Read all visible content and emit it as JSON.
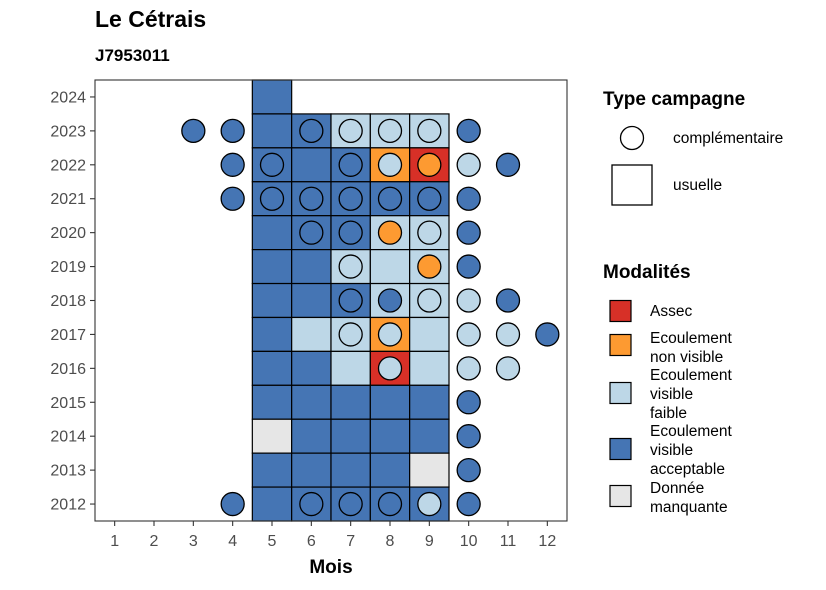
{
  "chart_data": {
    "type": "heatmap",
    "title": "Le Cétrais",
    "subtitle": "J7953011",
    "xlabel": "Mois",
    "ylabel": "",
    "x_ticks": [
      1,
      2,
      3,
      4,
      5,
      6,
      7,
      8,
      9,
      10,
      11,
      12
    ],
    "y_ticks": [
      2012,
      2013,
      2014,
      2015,
      2016,
      2017,
      2018,
      2019,
      2020,
      2021,
      2022,
      2023,
      2024
    ],
    "xlim": [
      0.5,
      12.5
    ],
    "ylim": [
      2011.5,
      2024.5
    ],
    "grid": false,
    "colors": {
      "assec": "#d73027",
      "nv": "#fd9a31",
      "vf": "#bdd7e7",
      "va": "#4575b4",
      "dm": "#e6e6e6"
    },
    "legend_type": {
      "title": "Type campagne",
      "items": [
        {
          "key": "complementaire",
          "label": "complémentaire",
          "shape": "circle"
        },
        {
          "key": "usuelle",
          "label": "usuelle",
          "shape": "square"
        }
      ]
    },
    "legend_mod": {
      "title": "Modalités",
      "items": [
        {
          "key": "assec",
          "lines": [
            "Assec"
          ]
        },
        {
          "key": "nv",
          "lines": [
            "Ecoulement",
            "non visible"
          ]
        },
        {
          "key": "vf",
          "lines": [
            "Ecoulement",
            "visible",
            "faible"
          ]
        },
        {
          "key": "va",
          "lines": [
            "Ecoulement",
            "visible",
            "acceptable"
          ]
        },
        {
          "key": "dm",
          "lines": [
            "Donnée",
            "manquante"
          ]
        }
      ]
    },
    "usuelle": [
      {
        "year": 2024,
        "month": 5,
        "mod": "va"
      },
      {
        "year": 2023,
        "month": 5,
        "mod": "va"
      },
      {
        "year": 2023,
        "month": 6,
        "mod": "va"
      },
      {
        "year": 2023,
        "month": 7,
        "mod": "vf"
      },
      {
        "year": 2023,
        "month": 8,
        "mod": "vf"
      },
      {
        "year": 2023,
        "month": 9,
        "mod": "vf"
      },
      {
        "year": 2022,
        "month": 5,
        "mod": "va"
      },
      {
        "year": 2022,
        "month": 6,
        "mod": "va"
      },
      {
        "year": 2022,
        "month": 7,
        "mod": "va"
      },
      {
        "year": 2022,
        "month": 8,
        "mod": "nv"
      },
      {
        "year": 2022,
        "month": 9,
        "mod": "assec"
      },
      {
        "year": 2021,
        "month": 5,
        "mod": "va"
      },
      {
        "year": 2021,
        "month": 6,
        "mod": "va"
      },
      {
        "year": 2021,
        "month": 7,
        "mod": "va"
      },
      {
        "year": 2021,
        "month": 8,
        "mod": "va"
      },
      {
        "year": 2021,
        "month": 9,
        "mod": "va"
      },
      {
        "year": 2020,
        "month": 5,
        "mod": "va"
      },
      {
        "year": 2020,
        "month": 6,
        "mod": "va"
      },
      {
        "year": 2020,
        "month": 7,
        "mod": "va"
      },
      {
        "year": 2020,
        "month": 8,
        "mod": "vf"
      },
      {
        "year": 2020,
        "month": 9,
        "mod": "vf"
      },
      {
        "year": 2019,
        "month": 5,
        "mod": "va"
      },
      {
        "year": 2019,
        "month": 6,
        "mod": "va"
      },
      {
        "year": 2019,
        "month": 7,
        "mod": "vf"
      },
      {
        "year": 2019,
        "month": 8,
        "mod": "vf"
      },
      {
        "year": 2019,
        "month": 9,
        "mod": "vf"
      },
      {
        "year": 2018,
        "month": 5,
        "mod": "va"
      },
      {
        "year": 2018,
        "month": 6,
        "mod": "va"
      },
      {
        "year": 2018,
        "month": 7,
        "mod": "va"
      },
      {
        "year": 2018,
        "month": 8,
        "mod": "vf"
      },
      {
        "year": 2018,
        "month": 9,
        "mod": "vf"
      },
      {
        "year": 2017,
        "month": 5,
        "mod": "va"
      },
      {
        "year": 2017,
        "month": 6,
        "mod": "vf"
      },
      {
        "year": 2017,
        "month": 7,
        "mod": "vf"
      },
      {
        "year": 2017,
        "month": 8,
        "mod": "nv"
      },
      {
        "year": 2017,
        "month": 9,
        "mod": "vf"
      },
      {
        "year": 2016,
        "month": 5,
        "mod": "va"
      },
      {
        "year": 2016,
        "month": 6,
        "mod": "va"
      },
      {
        "year": 2016,
        "month": 7,
        "mod": "vf"
      },
      {
        "year": 2016,
        "month": 8,
        "mod": "assec"
      },
      {
        "year": 2016,
        "month": 9,
        "mod": "vf"
      },
      {
        "year": 2015,
        "month": 5,
        "mod": "va"
      },
      {
        "year": 2015,
        "month": 6,
        "mod": "va"
      },
      {
        "year": 2015,
        "month": 7,
        "mod": "va"
      },
      {
        "year": 2015,
        "month": 8,
        "mod": "va"
      },
      {
        "year": 2015,
        "month": 9,
        "mod": "va"
      },
      {
        "year": 2014,
        "month": 5,
        "mod": "dm"
      },
      {
        "year": 2014,
        "month": 6,
        "mod": "va"
      },
      {
        "year": 2014,
        "month": 7,
        "mod": "va"
      },
      {
        "year": 2014,
        "month": 8,
        "mod": "va"
      },
      {
        "year": 2014,
        "month": 9,
        "mod": "va"
      },
      {
        "year": 2013,
        "month": 5,
        "mod": "va"
      },
      {
        "year": 2013,
        "month": 6,
        "mod": "va"
      },
      {
        "year": 2013,
        "month": 7,
        "mod": "va"
      },
      {
        "year": 2013,
        "month": 8,
        "mod": "va"
      },
      {
        "year": 2013,
        "month": 9,
        "mod": "dm"
      },
      {
        "year": 2012,
        "month": 5,
        "mod": "va"
      },
      {
        "year": 2012,
        "month": 6,
        "mod": "va"
      },
      {
        "year": 2012,
        "month": 7,
        "mod": "va"
      },
      {
        "year": 2012,
        "month": 8,
        "mod": "va"
      },
      {
        "year": 2012,
        "month": 9,
        "mod": "va"
      }
    ],
    "complementaire": [
      {
        "year": 2023,
        "month": 3,
        "mod": "va"
      },
      {
        "year": 2023,
        "month": 4,
        "mod": "va"
      },
      {
        "year": 2023,
        "month": 6,
        "mod": "va"
      },
      {
        "year": 2023,
        "month": 7,
        "mod": "vf"
      },
      {
        "year": 2023,
        "month": 8,
        "mod": "vf"
      },
      {
        "year": 2023,
        "month": 9,
        "mod": "vf"
      },
      {
        "year": 2023,
        "month": 10,
        "mod": "va"
      },
      {
        "year": 2022,
        "month": 4,
        "mod": "va"
      },
      {
        "year": 2022,
        "month": 5,
        "mod": "va"
      },
      {
        "year": 2022,
        "month": 7,
        "mod": "va"
      },
      {
        "year": 2022,
        "month": 8,
        "mod": "vf"
      },
      {
        "year": 2022,
        "month": 9,
        "mod": "nv"
      },
      {
        "year": 2022,
        "month": 10,
        "mod": "vf"
      },
      {
        "year": 2022,
        "month": 11,
        "mod": "va"
      },
      {
        "year": 2021,
        "month": 4,
        "mod": "va"
      },
      {
        "year": 2021,
        "month": 5,
        "mod": "va"
      },
      {
        "year": 2021,
        "month": 6,
        "mod": "va"
      },
      {
        "year": 2021,
        "month": 7,
        "mod": "va"
      },
      {
        "year": 2021,
        "month": 8,
        "mod": "va"
      },
      {
        "year": 2021,
        "month": 9,
        "mod": "va"
      },
      {
        "year": 2021,
        "month": 10,
        "mod": "va"
      },
      {
        "year": 2020,
        "month": 6,
        "mod": "va"
      },
      {
        "year": 2020,
        "month": 7,
        "mod": "va"
      },
      {
        "year": 2020,
        "month": 8,
        "mod": "nv"
      },
      {
        "year": 2020,
        "month": 9,
        "mod": "vf"
      },
      {
        "year": 2020,
        "month": 10,
        "mod": "va"
      },
      {
        "year": 2019,
        "month": 7,
        "mod": "vf"
      },
      {
        "year": 2019,
        "month": 9,
        "mod": "nv"
      },
      {
        "year": 2019,
        "month": 10,
        "mod": "va"
      },
      {
        "year": 2018,
        "month": 7,
        "mod": "va"
      },
      {
        "year": 2018,
        "month": 8,
        "mod": "va"
      },
      {
        "year": 2018,
        "month": 9,
        "mod": "vf"
      },
      {
        "year": 2018,
        "month": 10,
        "mod": "vf"
      },
      {
        "year": 2018,
        "month": 11,
        "mod": "va"
      },
      {
        "year": 2017,
        "month": 7,
        "mod": "vf"
      },
      {
        "year": 2017,
        "month": 8,
        "mod": "vf"
      },
      {
        "year": 2017,
        "month": 10,
        "mod": "vf"
      },
      {
        "year": 2017,
        "month": 11,
        "mod": "vf"
      },
      {
        "year": 2017,
        "month": 12,
        "mod": "va"
      },
      {
        "year": 2016,
        "month": 8,
        "mod": "vf"
      },
      {
        "year": 2016,
        "month": 10,
        "mod": "vf"
      },
      {
        "year": 2016,
        "month": 11,
        "mod": "vf"
      },
      {
        "year": 2015,
        "month": 10,
        "mod": "va"
      },
      {
        "year": 2014,
        "month": 10,
        "mod": "va"
      },
      {
        "year": 2013,
        "month": 10,
        "mod": "va"
      },
      {
        "year": 2012,
        "month": 4,
        "mod": "va"
      },
      {
        "year": 2012,
        "month": 6,
        "mod": "va"
      },
      {
        "year": 2012,
        "month": 7,
        "mod": "va"
      },
      {
        "year": 2012,
        "month": 8,
        "mod": "va"
      },
      {
        "year": 2012,
        "month": 9,
        "mod": "vf"
      },
      {
        "year": 2012,
        "month": 10,
        "mod": "va"
      }
    ]
  }
}
